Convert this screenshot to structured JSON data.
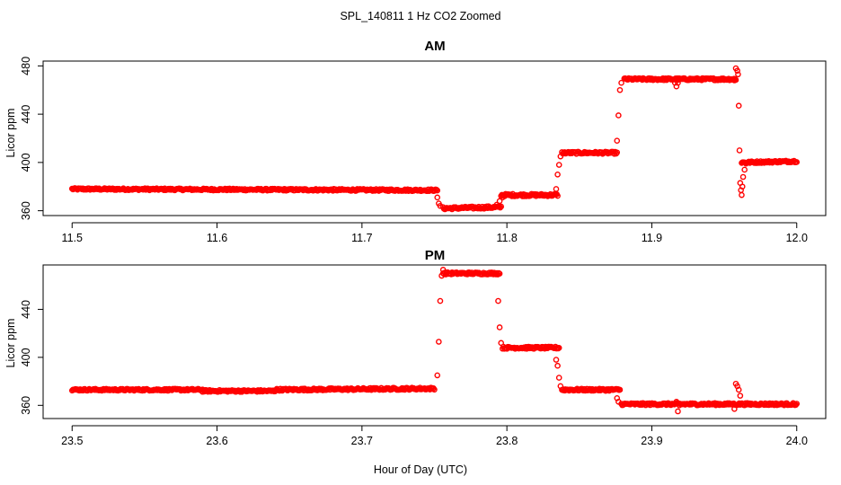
{
  "figure": {
    "title": "SPL_140811  1 Hz CO2 Zoomed",
    "xlabel": "Hour of Day (UTC)"
  },
  "colors": {
    "points": "#ff0000",
    "axes": "#000000",
    "background": "#ffffff"
  },
  "chart_data": [
    {
      "type": "scatter",
      "title": "AM",
      "xlabel": "",
      "ylabel": "Licor ppm",
      "xlim": [
        11.48,
        12.02
      ],
      "ylim": [
        356,
        484
      ],
      "xticks": [
        11.5,
        11.6,
        11.7,
        11.8,
        11.9,
        12.0
      ],
      "xtick_labels": [
        "11.5",
        "11.6",
        "11.7",
        "11.8",
        "11.9",
        "12.0"
      ],
      "yticks": [
        360,
        400,
        440,
        480
      ],
      "ytick_labels": [
        "360",
        "400",
        "440",
        "480"
      ],
      "grid": false,
      "marker": "open-circle",
      "segments": [
        {
          "x": [
            11.5,
            11.752
          ],
          "y": [
            378,
            377
          ],
          "noise": 0.8
        },
        {
          "x": [
            11.756,
            11.796
          ],
          "y": [
            362,
            363
          ],
          "noise": 1.0
        },
        {
          "x": [
            11.796,
            11.835
          ],
          "y": [
            373,
            373
          ],
          "noise": 1.0
        },
        {
          "x": [
            11.838,
            11.876
          ],
          "y": [
            408,
            408
          ],
          "noise": 0.9
        },
        {
          "x": [
            11.881,
            11.958
          ],
          "y": [
            469,
            469
          ],
          "noise": 0.9
        },
        {
          "x": [
            11.962,
            12.0
          ],
          "y": [
            400,
            401
          ],
          "noise": 0.8
        }
      ],
      "points": [
        [
          11.752,
          371
        ],
        [
          11.753,
          366
        ],
        [
          11.754,
          364
        ],
        [
          11.793,
          365
        ],
        [
          11.795,
          368
        ],
        [
          11.797,
          371
        ],
        [
          11.834,
          378
        ],
        [
          11.835,
          390
        ],
        [
          11.836,
          398
        ],
        [
          11.837,
          405
        ],
        [
          11.876,
          418
        ],
        [
          11.877,
          439
        ],
        [
          11.878,
          460
        ],
        [
          11.879,
          466
        ],
        [
          11.916,
          466
        ],
        [
          11.917,
          463
        ],
        [
          11.918,
          466
        ],
        [
          11.957,
          468
        ],
        [
          11.958,
          478
        ],
        [
          11.959,
          476
        ],
        [
          11.9595,
          473
        ],
        [
          11.96,
          447
        ],
        [
          11.9605,
          410
        ],
        [
          11.961,
          383
        ],
        [
          11.9615,
          377
        ],
        [
          11.962,
          373
        ],
        [
          11.9625,
          380
        ],
        [
          11.963,
          388
        ],
        [
          11.964,
          394
        ],
        [
          11.965,
          399
        ]
      ]
    },
    {
      "type": "scatter",
      "title": "PM",
      "xlabel": "",
      "ylabel": "Licor ppm",
      "xlim": [
        23.48,
        24.02
      ],
      "ylim": [
        349,
        477
      ],
      "xticks": [
        23.5,
        23.6,
        23.7,
        23.8,
        23.9,
        24.0
      ],
      "xtick_labels": [
        "23.5",
        "23.6",
        "23.7",
        "23.8",
        "23.9",
        "24.0"
      ],
      "yticks": [
        360,
        400,
        440
      ],
      "ytick_labels": [
        "360",
        "400",
        "440"
      ],
      "grid": false,
      "marker": "open-circle",
      "segments": [
        {
          "x": [
            23.5,
            23.59
          ],
          "y": [
            373,
            373
          ],
          "noise": 0.8
        },
        {
          "x": [
            23.59,
            23.64
          ],
          "y": [
            372,
            372
          ],
          "noise": 0.8
        },
        {
          "x": [
            23.64,
            23.75
          ],
          "y": [
            373,
            374
          ],
          "noise": 0.9
        },
        {
          "x": [
            23.756,
            23.795
          ],
          "y": [
            470,
            470
          ],
          "noise": 0.9
        },
        {
          "x": [
            23.797,
            23.836
          ],
          "y": [
            408,
            408
          ],
          "noise": 0.9
        },
        {
          "x": [
            23.838,
            23.878
          ],
          "y": [
            373,
            373
          ],
          "noise": 0.9
        },
        {
          "x": [
            23.879,
            24.0
          ],
          "y": [
            361,
            361
          ],
          "noise": 0.9
        }
      ],
      "points": [
        [
          23.752,
          385
        ],
        [
          23.753,
          413
        ],
        [
          23.754,
          447
        ],
        [
          23.755,
          468
        ],
        [
          23.756,
          473
        ],
        [
          23.794,
          447
        ],
        [
          23.795,
          425
        ],
        [
          23.796,
          412
        ],
        [
          23.834,
          398
        ],
        [
          23.835,
          393
        ],
        [
          23.836,
          383
        ],
        [
          23.837,
          376
        ],
        [
          23.876,
          366
        ],
        [
          23.877,
          363
        ],
        [
          23.917,
          363
        ],
        [
          23.918,
          355
        ],
        [
          23.919,
          360
        ],
        [
          23.957,
          357
        ],
        [
          23.958,
          378
        ],
        [
          23.959,
          376
        ],
        [
          23.96,
          373
        ],
        [
          23.961,
          368
        ]
      ]
    }
  ]
}
